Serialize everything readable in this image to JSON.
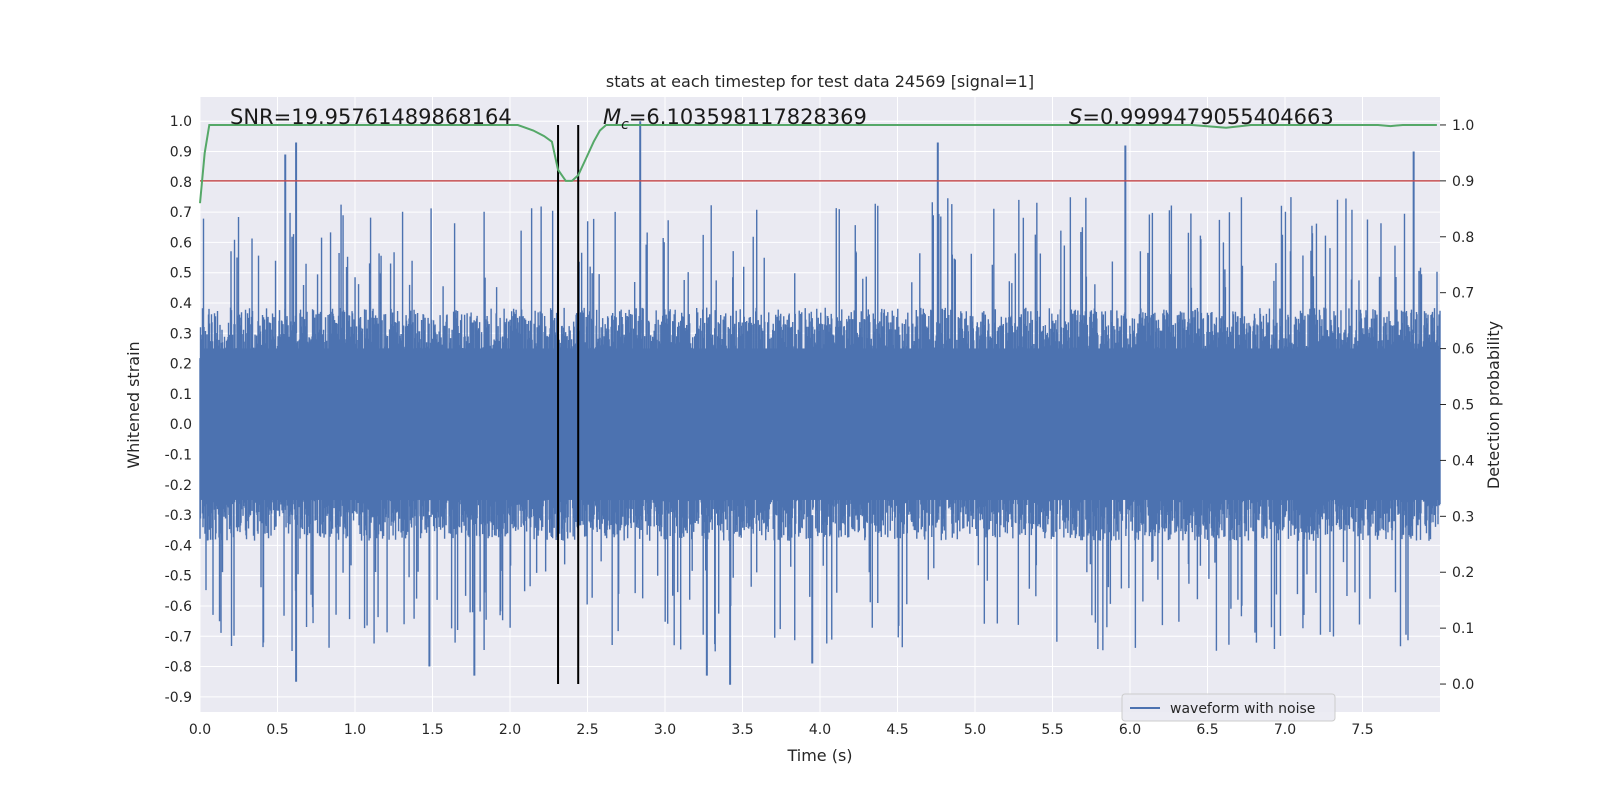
{
  "chart_data": {
    "type": "line",
    "title": "stats at each timestep for test data 24569 [signal=1]",
    "xlabel": "Time (s)",
    "ylabel": "Whitened strain",
    "y2label": "Detection probability",
    "xlim": [
      0.0,
      8.0
    ],
    "ylim": [
      -0.95,
      1.08
    ],
    "y2lim": [
      -0.05,
      1.05
    ],
    "x_ticks": [
      "0.0",
      "0.5",
      "1.0",
      "1.5",
      "2.0",
      "2.5",
      "3.0",
      "3.5",
      "4.0",
      "4.5",
      "5.0",
      "5.5",
      "6.0",
      "6.5",
      "7.0",
      "7.5"
    ],
    "y_ticks": [
      "1.0",
      "0.9",
      "0.8",
      "0.7",
      "0.6",
      "0.5",
      "0.4",
      "0.3",
      "0.2",
      "0.1",
      "0.0",
      "-0.1",
      "-0.2",
      "-0.3",
      "-0.4",
      "-0.5",
      "-0.6",
      "-0.7",
      "-0.8",
      "-0.9"
    ],
    "y2_ticks": [
      "1.0",
      "0.9",
      "0.8",
      "0.7",
      "0.6",
      "0.5",
      "0.4",
      "0.3",
      "0.2",
      "0.1",
      "0.0"
    ],
    "grid": true,
    "legend": {
      "position": "bottom-right",
      "entries": [
        "waveform with noise"
      ]
    },
    "annotations": {
      "snr": "SNR=19.95761489868164",
      "mc_symbol": "M",
      "mc_sub": "c",
      "mc_value": "=6.103598117828369",
      "s_symbol": "S",
      "s_value": "=0.9999479055404663"
    },
    "vertical_lines_x": [
      2.31,
      2.44
    ],
    "threshold_probability": 0.9,
    "waveform": {
      "name": "waveform with noise",
      "x_range": [
        0.0,
        8.0
      ],
      "typical_envelope": 0.35,
      "peaks": [
        {
          "x": 0.55,
          "y": 0.89
        },
        {
          "x": 0.62,
          "y": 0.93
        },
        {
          "x": 2.84,
          "y": 1.0
        },
        {
          "x": 4.76,
          "y": 0.93
        },
        {
          "x": 5.97,
          "y": 0.92
        },
        {
          "x": 7.83,
          "y": 0.9
        }
      ],
      "troughs": [
        {
          "x": 0.62,
          "y": -0.85
        },
        {
          "x": 1.77,
          "y": -0.83
        },
        {
          "x": 3.27,
          "y": -0.83
        },
        {
          "x": 3.42,
          "y": -0.86
        },
        {
          "x": 1.48,
          "y": -0.8
        },
        {
          "x": 3.95,
          "y": -0.79
        }
      ]
    },
    "probability": {
      "x": [
        0.0,
        0.03,
        0.06,
        0.1,
        0.2,
        1.9,
        2.05,
        2.15,
        2.22,
        2.27,
        2.31,
        2.36,
        2.4,
        2.44,
        2.49,
        2.54,
        2.58,
        2.62,
        2.7,
        6.4,
        6.62,
        6.78,
        7.6,
        7.68,
        7.76,
        7.98
      ],
      "y": [
        0.86,
        0.95,
        1.0,
        1.0,
        1.0,
        1.0,
        1.0,
        0.99,
        0.98,
        0.97,
        0.92,
        0.9,
        0.9,
        0.91,
        0.94,
        0.97,
        0.99,
        1.0,
        1.0,
        1.0,
        0.995,
        1.0,
        1.0,
        0.998,
        1.0,
        1.0
      ]
    },
    "colors": {
      "waveform": "#4c72b0",
      "probability": "#55a868",
      "threshold": "#c44e52",
      "vlines": "#000000",
      "background": "#eaeaf2",
      "grid": "#ffffff"
    }
  }
}
